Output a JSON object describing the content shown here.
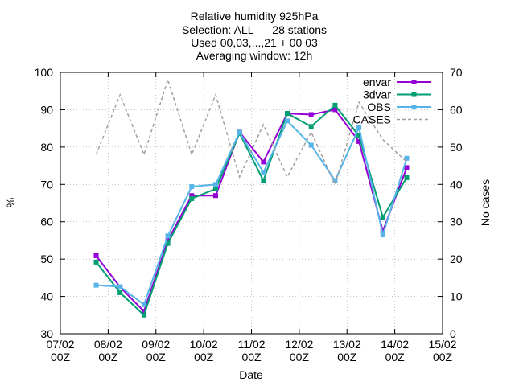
{
  "chart_data": {
    "type": "line",
    "title_lines": [
      "Relative humidity 925hPa",
      "Selection: ALL      28 stations",
      "Used 00,03,...,21 + 00 03",
      "Averaging window: 12h"
    ],
    "xlabel": "Date",
    "ylabel": "%",
    "y2label": "No cases",
    "xlim": [
      0,
      8
    ],
    "ylim": [
      30,
      100
    ],
    "y2lim": [
      0,
      70
    ],
    "x_ticks": [
      0,
      1,
      2,
      3,
      4,
      5,
      6,
      7,
      8
    ],
    "x_tick_labels": [
      [
        "07/02",
        "00Z"
      ],
      [
        "08/02",
        "00Z"
      ],
      [
        "09/02",
        "00Z"
      ],
      [
        "10/02",
        "00Z"
      ],
      [
        "11/02",
        "00Z"
      ],
      [
        "12/02",
        "00Z"
      ],
      [
        "13/02",
        "00Z"
      ],
      [
        "14/02",
        "00Z"
      ],
      [
        "15/02",
        "00Z"
      ]
    ],
    "y_ticks": [
      30,
      40,
      50,
      60,
      70,
      80,
      90,
      100
    ],
    "y2_ticks": [
      0,
      10,
      20,
      30,
      40,
      50,
      60,
      70
    ],
    "legend_position": "top-right",
    "series": [
      {
        "name": "envar",
        "color": "#9400d3",
        "axis": "y",
        "marker": "square",
        "dash": "",
        "x": [
          0.75,
          1.25,
          1.75,
          2.25,
          2.75,
          3.25,
          3.75,
          4.25,
          4.75,
          5.25,
          5.75,
          6.25,
          6.75,
          7.25
        ],
        "values": [
          50.9,
          42.5,
          36.0,
          55.0,
          67.0,
          67.0,
          84.0,
          76.0,
          89.0,
          88.7,
          90.0,
          81.5,
          57.5,
          74.5
        ]
      },
      {
        "name": "3dvar",
        "color": "#009e73",
        "axis": "y",
        "marker": "square",
        "dash": "",
        "x": [
          0.75,
          1.25,
          1.75,
          2.25,
          2.75,
          3.25,
          3.75,
          4.25,
          4.75,
          5.25,
          5.75,
          6.25,
          6.75,
          7.25
        ],
        "values": [
          49.2,
          41.0,
          35.0,
          54.2,
          66.2,
          68.8,
          83.7,
          71.0,
          89.0,
          85.5,
          91.2,
          83.0,
          61.2,
          71.8
        ]
      },
      {
        "name": "OBS",
        "color": "#56b4e9",
        "axis": "y",
        "marker": "square",
        "dash": "",
        "x": [
          0.75,
          1.25,
          1.75,
          2.25,
          2.75,
          3.25,
          3.75,
          4.25,
          4.75,
          5.25,
          5.75,
          6.25,
          6.75,
          7.25
        ],
        "values": [
          43.0,
          42.6,
          37.8,
          56.2,
          69.4,
          70.0,
          84.0,
          73.2,
          87.0,
          80.5,
          71.0,
          85.2,
          56.5,
          77.0
        ]
      },
      {
        "name": "CASES",
        "color": "#a0a0a0",
        "axis": "y2",
        "marker": "none",
        "dash": "4,3",
        "x": [
          0.75,
          1.25,
          1.75,
          2.25,
          2.75,
          3.25,
          3.75,
          4.25,
          4.75,
          5.25,
          5.75,
          6.25,
          6.75,
          7.25
        ],
        "values": [
          48,
          64,
          48,
          68,
          48,
          64,
          42,
          56,
          42,
          54,
          40,
          62,
          52,
          46
        ]
      }
    ]
  }
}
